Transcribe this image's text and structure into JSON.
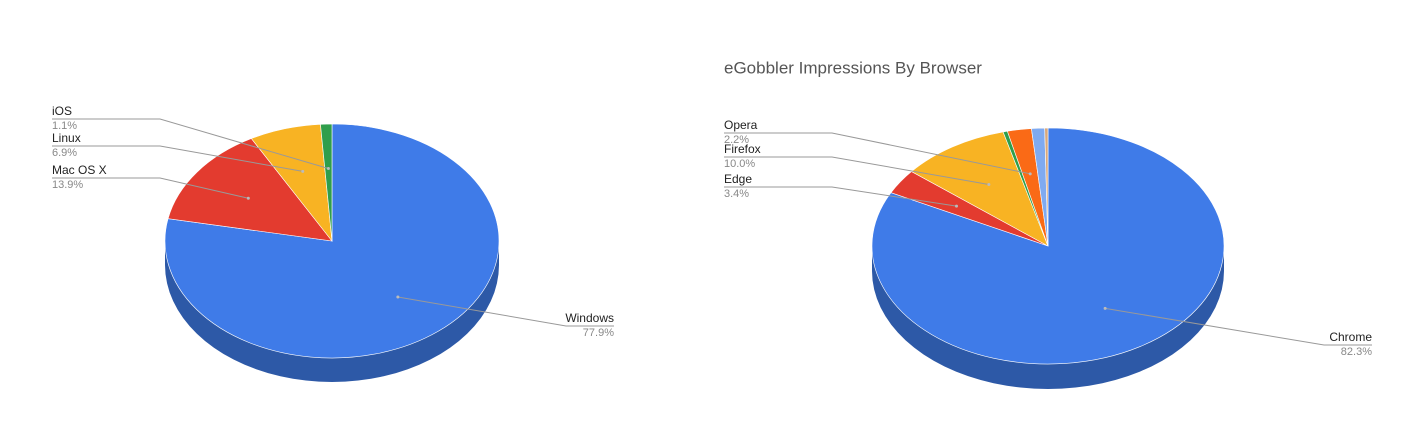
{
  "chart_data": [
    {
      "type": "pie",
      "categories": [
        "Windows",
        "Mac OS X",
        "Linux",
        "iOS"
      ],
      "values": [
        77.9,
        13.9,
        6.9,
        1.1
      ],
      "value_labels": [
        "77.9%",
        "13.9%",
        "6.9%",
        "1.1%"
      ],
      "colors": [
        "#3f7be8",
        "#e33b2f",
        "#f8b323",
        "#2f9e4c"
      ]
    },
    {
      "type": "pie",
      "title": "eGobbler Impressions By Browser",
      "categories": [
        "Chrome",
        "Edge",
        "Firefox",
        null,
        "Opera",
        null,
        null
      ],
      "values": [
        82.3,
        3.4,
        10.0,
        0.4,
        2.2,
        1.2,
        0.3
      ],
      "value_labels": [
        "82.3%",
        "3.4%",
        "10.0%",
        null,
        "2.2%",
        null,
        null
      ],
      "colors": [
        "#3f7be8",
        "#e33b2f",
        "#f8b323",
        "#2f9e4c",
        "#fa6a16",
        "#7faaf0",
        "#d9a87a"
      ]
    }
  ]
}
